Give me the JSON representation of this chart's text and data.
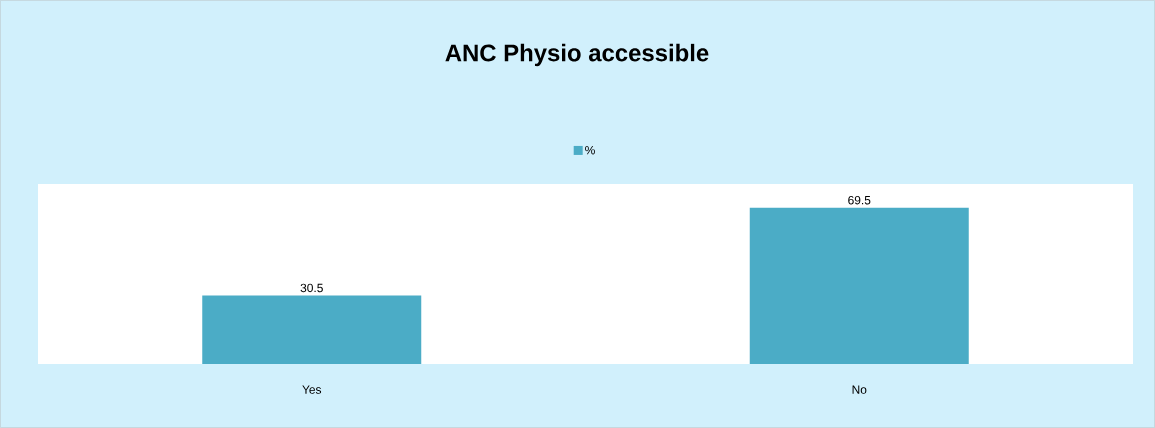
{
  "chart_data": {
    "type": "bar",
    "title": "ANC Physio accessible",
    "categories": [
      "Yes",
      "No"
    ],
    "series": [
      {
        "name": "%",
        "color": "#4bacc6",
        "values": [
          30.5,
          69.5
        ]
      }
    ],
    "ylim": [
      0,
      80
    ],
    "data_labels": true,
    "legend": "top"
  }
}
